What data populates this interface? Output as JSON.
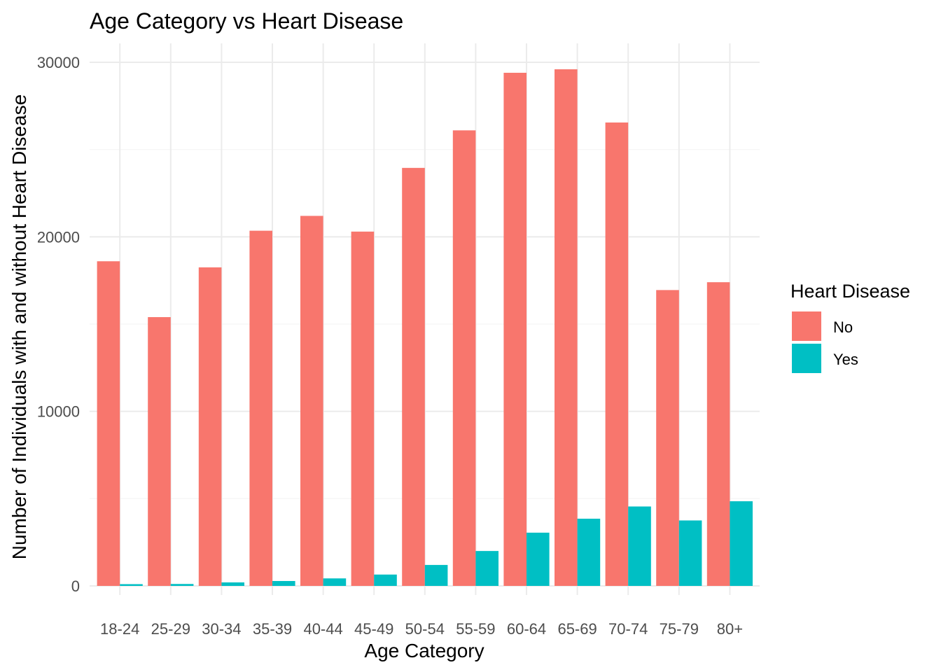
{
  "chart_data": {
    "type": "bar",
    "title": "Age Category vs Heart Disease",
    "xlabel": "Age Category",
    "ylabel": "Number of Individuals with and without Heart Disease",
    "categories": [
      "18-24",
      "25-29",
      "30-34",
      "35-39",
      "40-44",
      "45-49",
      "50-54",
      "55-59",
      "60-64",
      "65-69",
      "70-74",
      "75-79",
      "80+"
    ],
    "series": [
      {
        "name": "No",
        "color": "#f8766d",
        "values": [
          18600,
          15400,
          18250,
          20350,
          21200,
          20300,
          23950,
          26100,
          29400,
          29600,
          26550,
          16950,
          17400
        ]
      },
      {
        "name": "Yes",
        "color": "#00bfc4",
        "values": [
          100,
          110,
          200,
          280,
          430,
          650,
          1200,
          2000,
          3050,
          3850,
          4550,
          3750,
          4850
        ]
      }
    ],
    "ylim": [
      0,
      30000
    ],
    "yticks": [
      0,
      10000,
      20000,
      30000
    ],
    "legend": {
      "title": "Heart Disease",
      "position": "right"
    },
    "grid": true
  }
}
